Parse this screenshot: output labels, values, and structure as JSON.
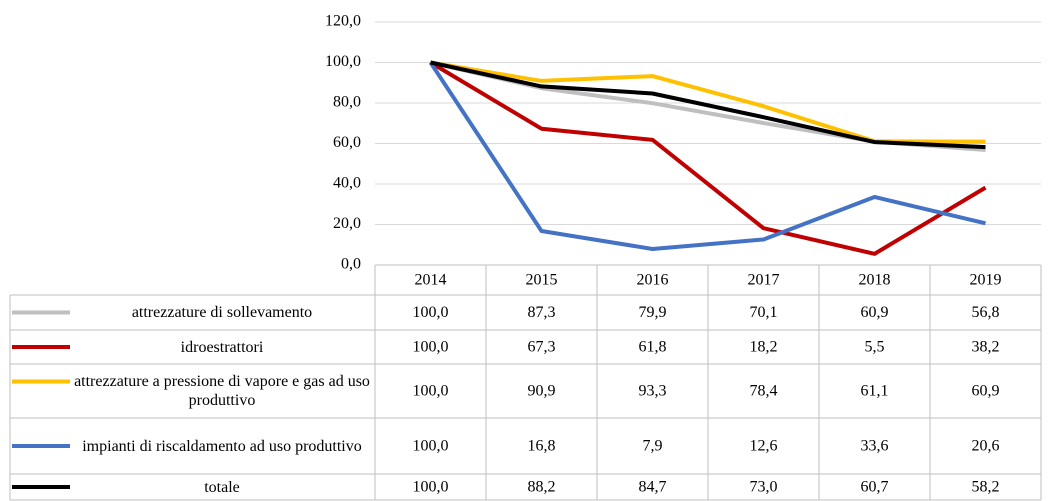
{
  "chart_data": {
    "type": "line",
    "categories": [
      "2014",
      "2015",
      "2016",
      "2017",
      "2018",
      "2019"
    ],
    "series": [
      {
        "name": "attrezzature di sollevamento",
        "color": "#bfbfbf",
        "values": [
          100.0,
          87.3,
          79.9,
          70.1,
          60.9,
          56.8
        ],
        "value_labels": [
          "100,0",
          "87,3",
          "79,9",
          "70,1",
          "60,9",
          "56,8"
        ]
      },
      {
        "name": "idroestrattori",
        "color": "#c00000",
        "values": [
          100.0,
          67.3,
          61.8,
          18.2,
          5.5,
          38.2
        ],
        "value_labels": [
          "100,0",
          "67,3",
          "61,8",
          "18,2",
          "5,5",
          "38,2"
        ]
      },
      {
        "name": "attrezzature a pressione di vapore e gas ad uso produttivo",
        "color": "#ffc000",
        "values": [
          100.0,
          90.9,
          93.3,
          78.4,
          61.1,
          60.9
        ],
        "value_labels": [
          "100,0",
          "90,9",
          "93,3",
          "78,4",
          "61,1",
          "60,9"
        ]
      },
      {
        "name": "impianti di riscaldamento ad uso produttivo",
        "color": "#4472c4",
        "values": [
          100.0,
          16.8,
          7.9,
          12.6,
          33.6,
          20.6
        ],
        "value_labels": [
          "100,0",
          "16,8",
          "7,9",
          "12,6",
          "33,6",
          "20,6"
        ]
      },
      {
        "name": "totale",
        "color": "#000000",
        "values": [
          100.0,
          88.2,
          84.7,
          73.0,
          60.7,
          58.2
        ],
        "value_labels": [
          "100,0",
          "88,2",
          "84,7",
          "73,0",
          "60,7",
          "58,2"
        ]
      }
    ],
    "ylim": [
      0,
      120
    ],
    "yticks": [
      {
        "value": 0,
        "label": "0,0"
      },
      {
        "value": 20,
        "label": "20,0"
      },
      {
        "value": 40,
        "label": "40,0"
      },
      {
        "value": 60,
        "label": "60,0"
      },
      {
        "value": 80,
        "label": "80,0"
      },
      {
        "value": 100,
        "label": "100,0"
      },
      {
        "value": 120,
        "label": "120,0"
      }
    ],
    "grid": true
  }
}
